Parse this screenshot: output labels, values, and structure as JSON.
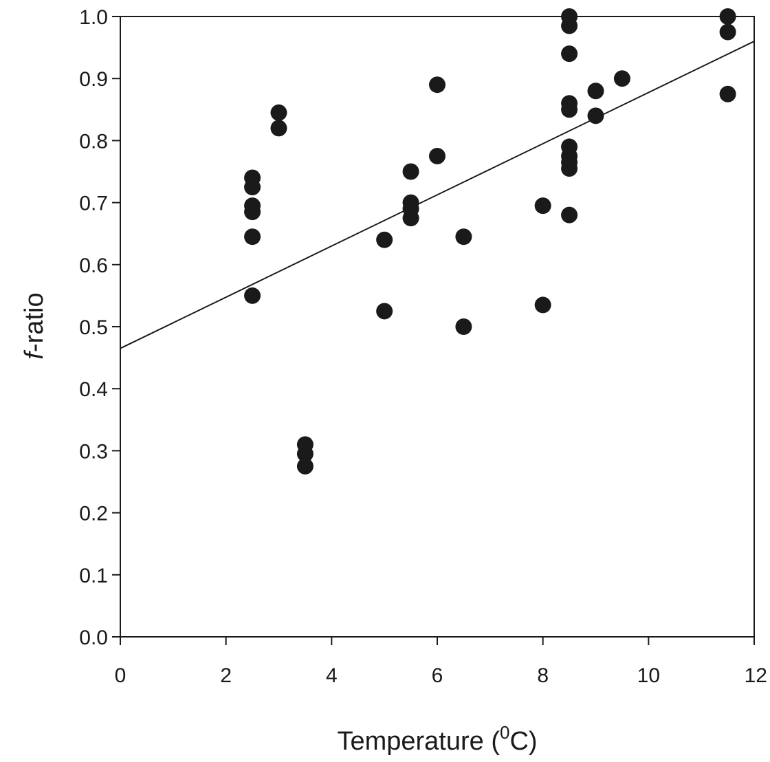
{
  "chart_data": {
    "type": "scatter",
    "title": "",
    "xlabel_main": "Temperature (",
    "xlabel_sup": "0",
    "xlabel_end": "C)",
    "ylabel_italic": "f",
    "ylabel_rest": "-ratio",
    "xlim": [
      0,
      12
    ],
    "ylim": [
      0.0,
      1.0
    ],
    "x_ticks": [
      0,
      2,
      4,
      6,
      8,
      10,
      12
    ],
    "y_ticks": [
      0.0,
      0.1,
      0.2,
      0.3,
      0.4,
      0.5,
      0.6,
      0.7,
      0.8,
      0.9,
      1.0
    ],
    "x_tick_labels": [
      "0",
      "2",
      "4",
      "6",
      "8",
      "10",
      "12"
    ],
    "y_tick_labels": [
      "0.0",
      "0.1",
      "0.2",
      "0.3",
      "0.4",
      "0.5",
      "0.6",
      "0.7",
      "0.8",
      "0.9",
      "1.0"
    ],
    "grid": false,
    "legend": "none",
    "marker_color": "#1a1a1a",
    "line_color": "#1a1a1a",
    "points": [
      {
        "x": 2.5,
        "y": 0.74
      },
      {
        "x": 2.5,
        "y": 0.725
      },
      {
        "x": 2.5,
        "y": 0.695
      },
      {
        "x": 2.5,
        "y": 0.685
      },
      {
        "x": 2.5,
        "y": 0.645
      },
      {
        "x": 2.5,
        "y": 0.55
      },
      {
        "x": 3.0,
        "y": 0.845
      },
      {
        "x": 3.0,
        "y": 0.82
      },
      {
        "x": 3.5,
        "y": 0.31
      },
      {
        "x": 3.5,
        "y": 0.295
      },
      {
        "x": 3.5,
        "y": 0.275
      },
      {
        "x": 5.0,
        "y": 0.64
      },
      {
        "x": 5.0,
        "y": 0.525
      },
      {
        "x": 5.5,
        "y": 0.75
      },
      {
        "x": 5.5,
        "y": 0.7
      },
      {
        "x": 5.5,
        "y": 0.69
      },
      {
        "x": 5.5,
        "y": 0.675
      },
      {
        "x": 6.0,
        "y": 0.89
      },
      {
        "x": 6.0,
        "y": 0.775
      },
      {
        "x": 6.5,
        "y": 0.645
      },
      {
        "x": 6.5,
        "y": 0.5
      },
      {
        "x": 8.0,
        "y": 0.695
      },
      {
        "x": 8.0,
        "y": 0.535
      },
      {
        "x": 8.5,
        "y": 1.0
      },
      {
        "x": 8.5,
        "y": 0.985
      },
      {
        "x": 8.5,
        "y": 0.94
      },
      {
        "x": 8.5,
        "y": 0.86
      },
      {
        "x": 8.5,
        "y": 0.85
      },
      {
        "x": 8.5,
        "y": 0.79
      },
      {
        "x": 8.5,
        "y": 0.775
      },
      {
        "x": 8.5,
        "y": 0.765
      },
      {
        "x": 8.5,
        "y": 0.755
      },
      {
        "x": 8.5,
        "y": 0.68
      },
      {
        "x": 9.0,
        "y": 0.88
      },
      {
        "x": 9.0,
        "y": 0.84
      },
      {
        "x": 9.5,
        "y": 0.9
      },
      {
        "x": 11.5,
        "y": 1.0
      },
      {
        "x": 11.5,
        "y": 0.975
      },
      {
        "x": 11.5,
        "y": 0.875
      }
    ],
    "regression_line": {
      "x": [
        0,
        12
      ],
      "y": [
        0.465,
        0.96
      ]
    }
  }
}
